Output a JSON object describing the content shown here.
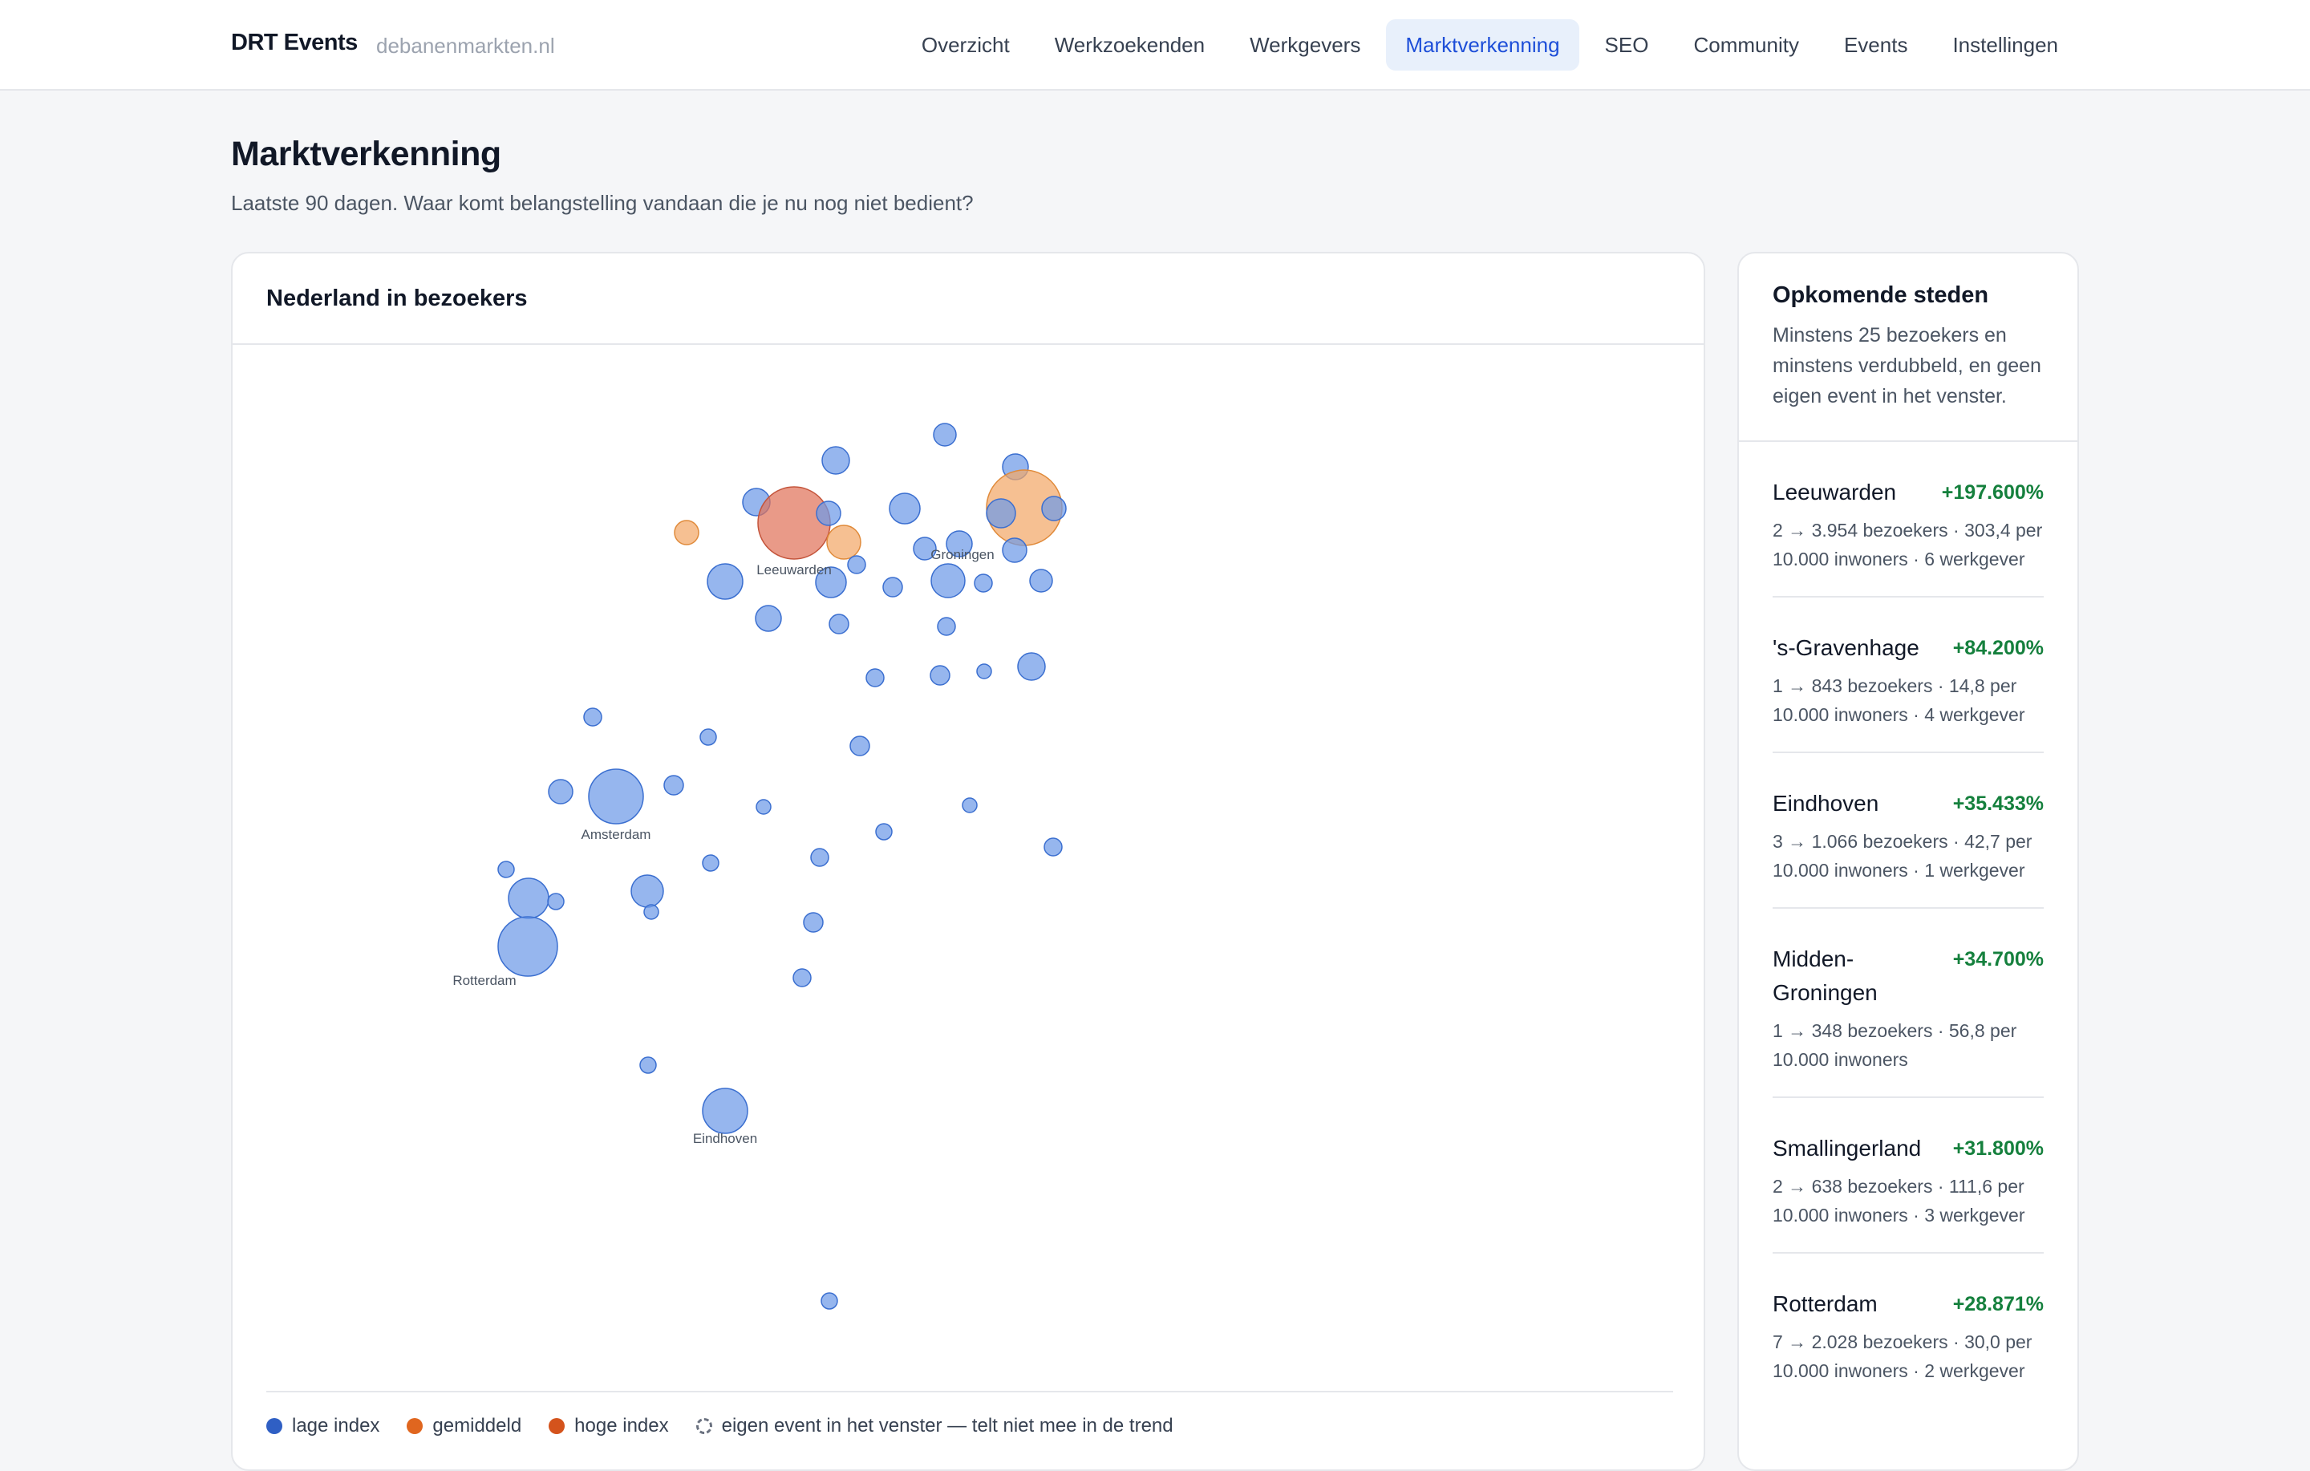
{
  "header": {
    "brand": "DRT Events",
    "domain": "debanenmarkten.nl",
    "nav": [
      {
        "label": "Overzicht",
        "active": false
      },
      {
        "label": "Werkzoekenden",
        "active": false
      },
      {
        "label": "Werkgevers",
        "active": false
      },
      {
        "label": "Marktverkenning",
        "active": true
      },
      {
        "label": "SEO",
        "active": false
      },
      {
        "label": "Community",
        "active": false
      },
      {
        "label": "Events",
        "active": false
      },
      {
        "label": "Instellingen",
        "active": false
      }
    ]
  },
  "page": {
    "title": "Marktverkenning",
    "subtitle": "Laatste 90 dagen. Waar komt belangstelling vandaan die je nu nog niet bedient?"
  },
  "map": {
    "title": "Nederland in bezoekers",
    "colors": {
      "low": "#6d9ae8",
      "mid": "#f2a868",
      "high": "#e0735a"
    },
    "labels": [
      "Leeuwarden",
      "Groningen",
      "Amsterdam",
      "Rotterdam",
      "Eindhoven"
    ],
    "legend": [
      {
        "label": "lage index",
        "color": "#2f5fc4"
      },
      {
        "label": "gemiddeld",
        "color": "#e0661f"
      },
      {
        "label": "hoge index",
        "color": "#d4531c"
      },
      {
        "label": "eigen event in het venster — telt niet mee in de trend",
        "color": "dashed"
      }
    ]
  },
  "sidebar": {
    "title": "Opkomende steden",
    "description": "Minstens 25 bezoekers en minstens verdubbeld, en geen eigen event in het venster.",
    "cities": [
      {
        "name": "Leeuwarden",
        "change": "+197.600%",
        "meta": "2 → 3.954 bezoekers · 303,4 per 10.000 inwoners · 6 werkgever"
      },
      {
        "name": "'s-Gravenhage",
        "change": "+84.200%",
        "meta": "1 → 843 bezoekers · 14,8 per 10.000 inwoners · 4 werkgever"
      },
      {
        "name": "Eindhoven",
        "change": "+35.433%",
        "meta": "3 → 1.066 bezoekers · 42,7 per 10.000 inwoners · 1 werkgever"
      },
      {
        "name": "Midden-Groningen",
        "change": "+34.700%",
        "meta": "1 → 348 bezoekers · 56,8 per 10.000 inwoners"
      },
      {
        "name": "Smallingerland",
        "change": "+31.800%",
        "meta": "2 → 638 bezoekers · 111,6 per 10.000 inwoners · 3 werkgever"
      },
      {
        "name": "Rotterdam",
        "change": "+28.871%",
        "meta": "7 → 2.028 bezoekers · 30,0 per 10.000 inwoners · 2 werkgever"
      }
    ]
  }
}
